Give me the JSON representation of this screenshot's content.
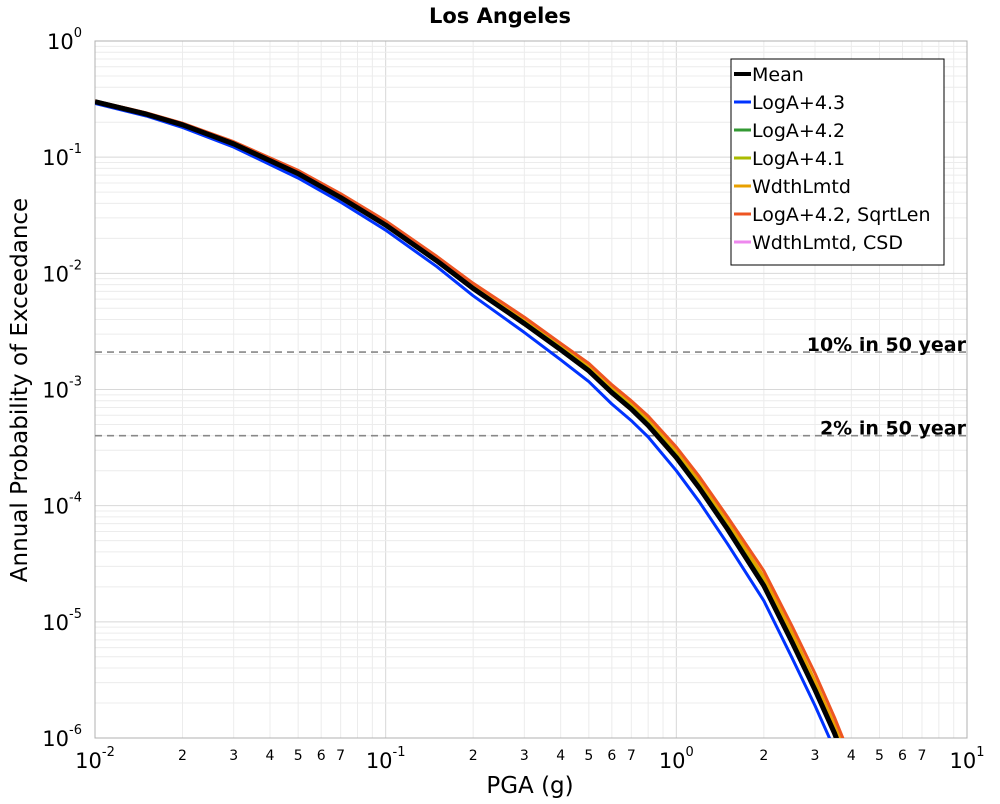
{
  "chart_data": {
    "type": "line",
    "title": "Los Angeles",
    "xlabel": "PGA (g)",
    "ylabel": "Annual Probability of Exceedance",
    "xscale": "log",
    "yscale": "log",
    "xlim": [
      0.01,
      10
    ],
    "ylim": [
      1e-06,
      1
    ],
    "grid": true,
    "legend_position": "top-right",
    "x_major_ticks": [
      {
        "base": "10",
        "exp": "-2"
      },
      {
        "base": "10",
        "exp": "-1"
      },
      {
        "base": "10",
        "exp": "0"
      },
      {
        "base": "10",
        "exp": "1"
      }
    ],
    "x_minor_tick_labels": [
      "2",
      "3",
      "4",
      "5",
      "6",
      "7"
    ],
    "y_major_ticks": [
      {
        "base": "10",
        "exp": "0"
      },
      {
        "base": "10",
        "exp": "-1"
      },
      {
        "base": "10",
        "exp": "-2"
      },
      {
        "base": "10",
        "exp": "-3"
      },
      {
        "base": "10",
        "exp": "-4"
      },
      {
        "base": "10",
        "exp": "-5"
      },
      {
        "base": "10",
        "exp": "-6"
      }
    ],
    "reference_lines": [
      {
        "label": "10% in 50 year",
        "y": 0.0021,
        "color": "#888888"
      },
      {
        "label": "2% in 50 year",
        "y": 0.0004,
        "color": "#888888"
      }
    ],
    "x": [
      0.01,
      0.015,
      0.02,
      0.03,
      0.05,
      0.07,
      0.1,
      0.15,
      0.2,
      0.3,
      0.4,
      0.5,
      0.6,
      0.7,
      0.8,
      1.0,
      1.2,
      1.5,
      2.0,
      2.5,
      3.0,
      3.5,
      4.0
    ],
    "series": [
      {
        "name": "Mean",
        "color": "#000000",
        "width": 5,
        "values": [
          0.3,
          0.235,
          0.19,
          0.13,
          0.072,
          0.045,
          0.026,
          0.0128,
          0.0074,
          0.0037,
          0.0022,
          0.00145,
          0.00094,
          0.00068,
          0.00049,
          0.00026,
          0.000142,
          6.3e-05,
          2.05e-05,
          6.7e-06,
          2.6e-06,
          1.1e-06,
          4.6e-07
        ]
      },
      {
        "name": "LogA+4.3",
        "color": "#0033ff",
        "width": 3,
        "values": [
          0.29,
          0.226,
          0.18,
          0.122,
          0.066,
          0.041,
          0.0235,
          0.0114,
          0.0064,
          0.0031,
          0.0018,
          0.00117,
          0.00075,
          0.00054,
          0.00039,
          0.0002,
          0.000108,
          4.7e-05,
          1.52e-05,
          4.9e-06,
          1.9e-06,
          8e-07,
          3.3e-07
        ]
      },
      {
        "name": "LogA+4.2",
        "color": "#339933",
        "width": 3,
        "values": [
          0.3,
          0.235,
          0.19,
          0.13,
          0.072,
          0.045,
          0.026,
          0.0128,
          0.0074,
          0.0037,
          0.0022,
          0.00145,
          0.00094,
          0.00068,
          0.00049,
          0.00026,
          0.000142,
          6.3e-05,
          2.05e-05,
          6.7e-06,
          2.6e-06,
          1.1e-06,
          4.6e-07
        ]
      },
      {
        "name": "LogA+4.1",
        "color": "#aabb00",
        "width": 3,
        "values": [
          0.302,
          0.237,
          0.192,
          0.132,
          0.074,
          0.0465,
          0.0268,
          0.0133,
          0.0077,
          0.0039,
          0.00235,
          0.00155,
          0.00101,
          0.00073,
          0.00053,
          0.00028,
          0.000154,
          6.9e-05,
          2.28e-05,
          7.5e-06,
          2.9e-06,
          1.2e-06,
          5.2e-07
        ]
      },
      {
        "name": "WdthLmtd",
        "color": "#e8a000",
        "width": 3,
        "values": [
          0.305,
          0.24,
          0.195,
          0.135,
          0.076,
          0.048,
          0.028,
          0.0138,
          0.008,
          0.0041,
          0.00245,
          0.00162,
          0.00106,
          0.00077,
          0.00056,
          0.0003,
          0.000165,
          7.4e-05,
          2.45e-05,
          8.1e-06,
          3.1e-06,
          1.3e-06,
          5.6e-07
        ]
      },
      {
        "name": "LogA+4.2, SqrtLen",
        "color": "#ee5522",
        "width": 3,
        "values": [
          0.305,
          0.241,
          0.196,
          0.136,
          0.077,
          0.0485,
          0.0283,
          0.014,
          0.0082,
          0.0042,
          0.0025,
          0.00168,
          0.0011,
          0.0008,
          0.00059,
          0.00032,
          0.000178,
          8e-05,
          2.75e-05,
          9.2e-06,
          3.6e-06,
          1.5e-06,
          6.6e-07
        ]
      },
      {
        "name": "WdthLmtd, CSD",
        "color": "#ee88ee",
        "width": 3,
        "values": [
          0.3,
          0.235,
          0.19,
          0.13,
          0.072,
          0.045,
          0.026,
          0.0128,
          0.0074,
          0.0037,
          0.0022,
          0.00145,
          0.00094,
          0.00068,
          0.00049,
          0.00026,
          0.000142,
          6.3e-05,
          2.05e-05,
          6.7e-06,
          2.6e-06,
          1.1e-06,
          4.6e-07
        ]
      }
    ]
  }
}
